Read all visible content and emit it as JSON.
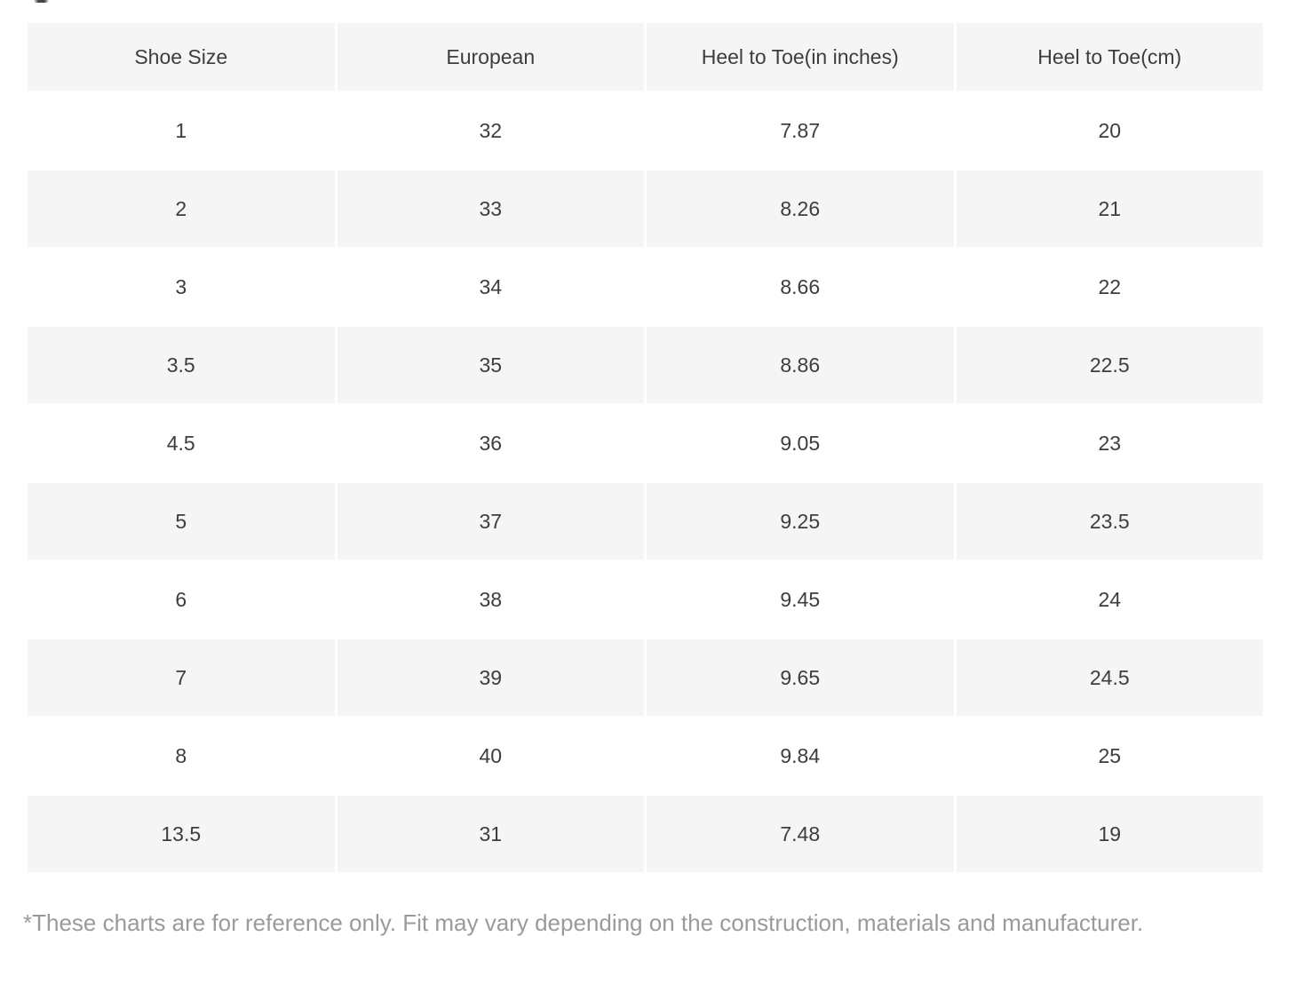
{
  "chart_data": {
    "type": "table",
    "columns": [
      "Shoe Size",
      "European",
      "Heel to Toe(in inches)",
      "Heel to Toe(cm)"
    ],
    "rows": [
      [
        "1",
        "32",
        "7.87",
        "20"
      ],
      [
        "2",
        "33",
        "8.26",
        "21"
      ],
      [
        "3",
        "34",
        "8.66",
        "22"
      ],
      [
        "3.5",
        "35",
        "8.86",
        "22.5"
      ],
      [
        "4.5",
        "36",
        "9.05",
        "23"
      ],
      [
        "5",
        "37",
        "9.25",
        "23.5"
      ],
      [
        "6",
        "38",
        "9.45",
        "24"
      ],
      [
        "7",
        "39",
        "9.65",
        "24.5"
      ],
      [
        "8",
        "40",
        "9.84",
        "25"
      ],
      [
        "13.5",
        "31",
        "7.48",
        "19"
      ]
    ],
    "layout": {
      "striping": "header and even data rows shaded, odd data rows white",
      "grid": "off",
      "cell_alignment": "center"
    },
    "colors": {
      "header_bg": "#f5f5f5",
      "stripe_bg": "#f5f5f5",
      "row_bg": "#ffffff",
      "cell_text": "#3d3d3d",
      "footnote_text": "#9a9a9a"
    }
  },
  "footnote": {
    "text": "*These charts are for reference only. Fit may vary depending on the construction, materials and manufacturer."
  }
}
